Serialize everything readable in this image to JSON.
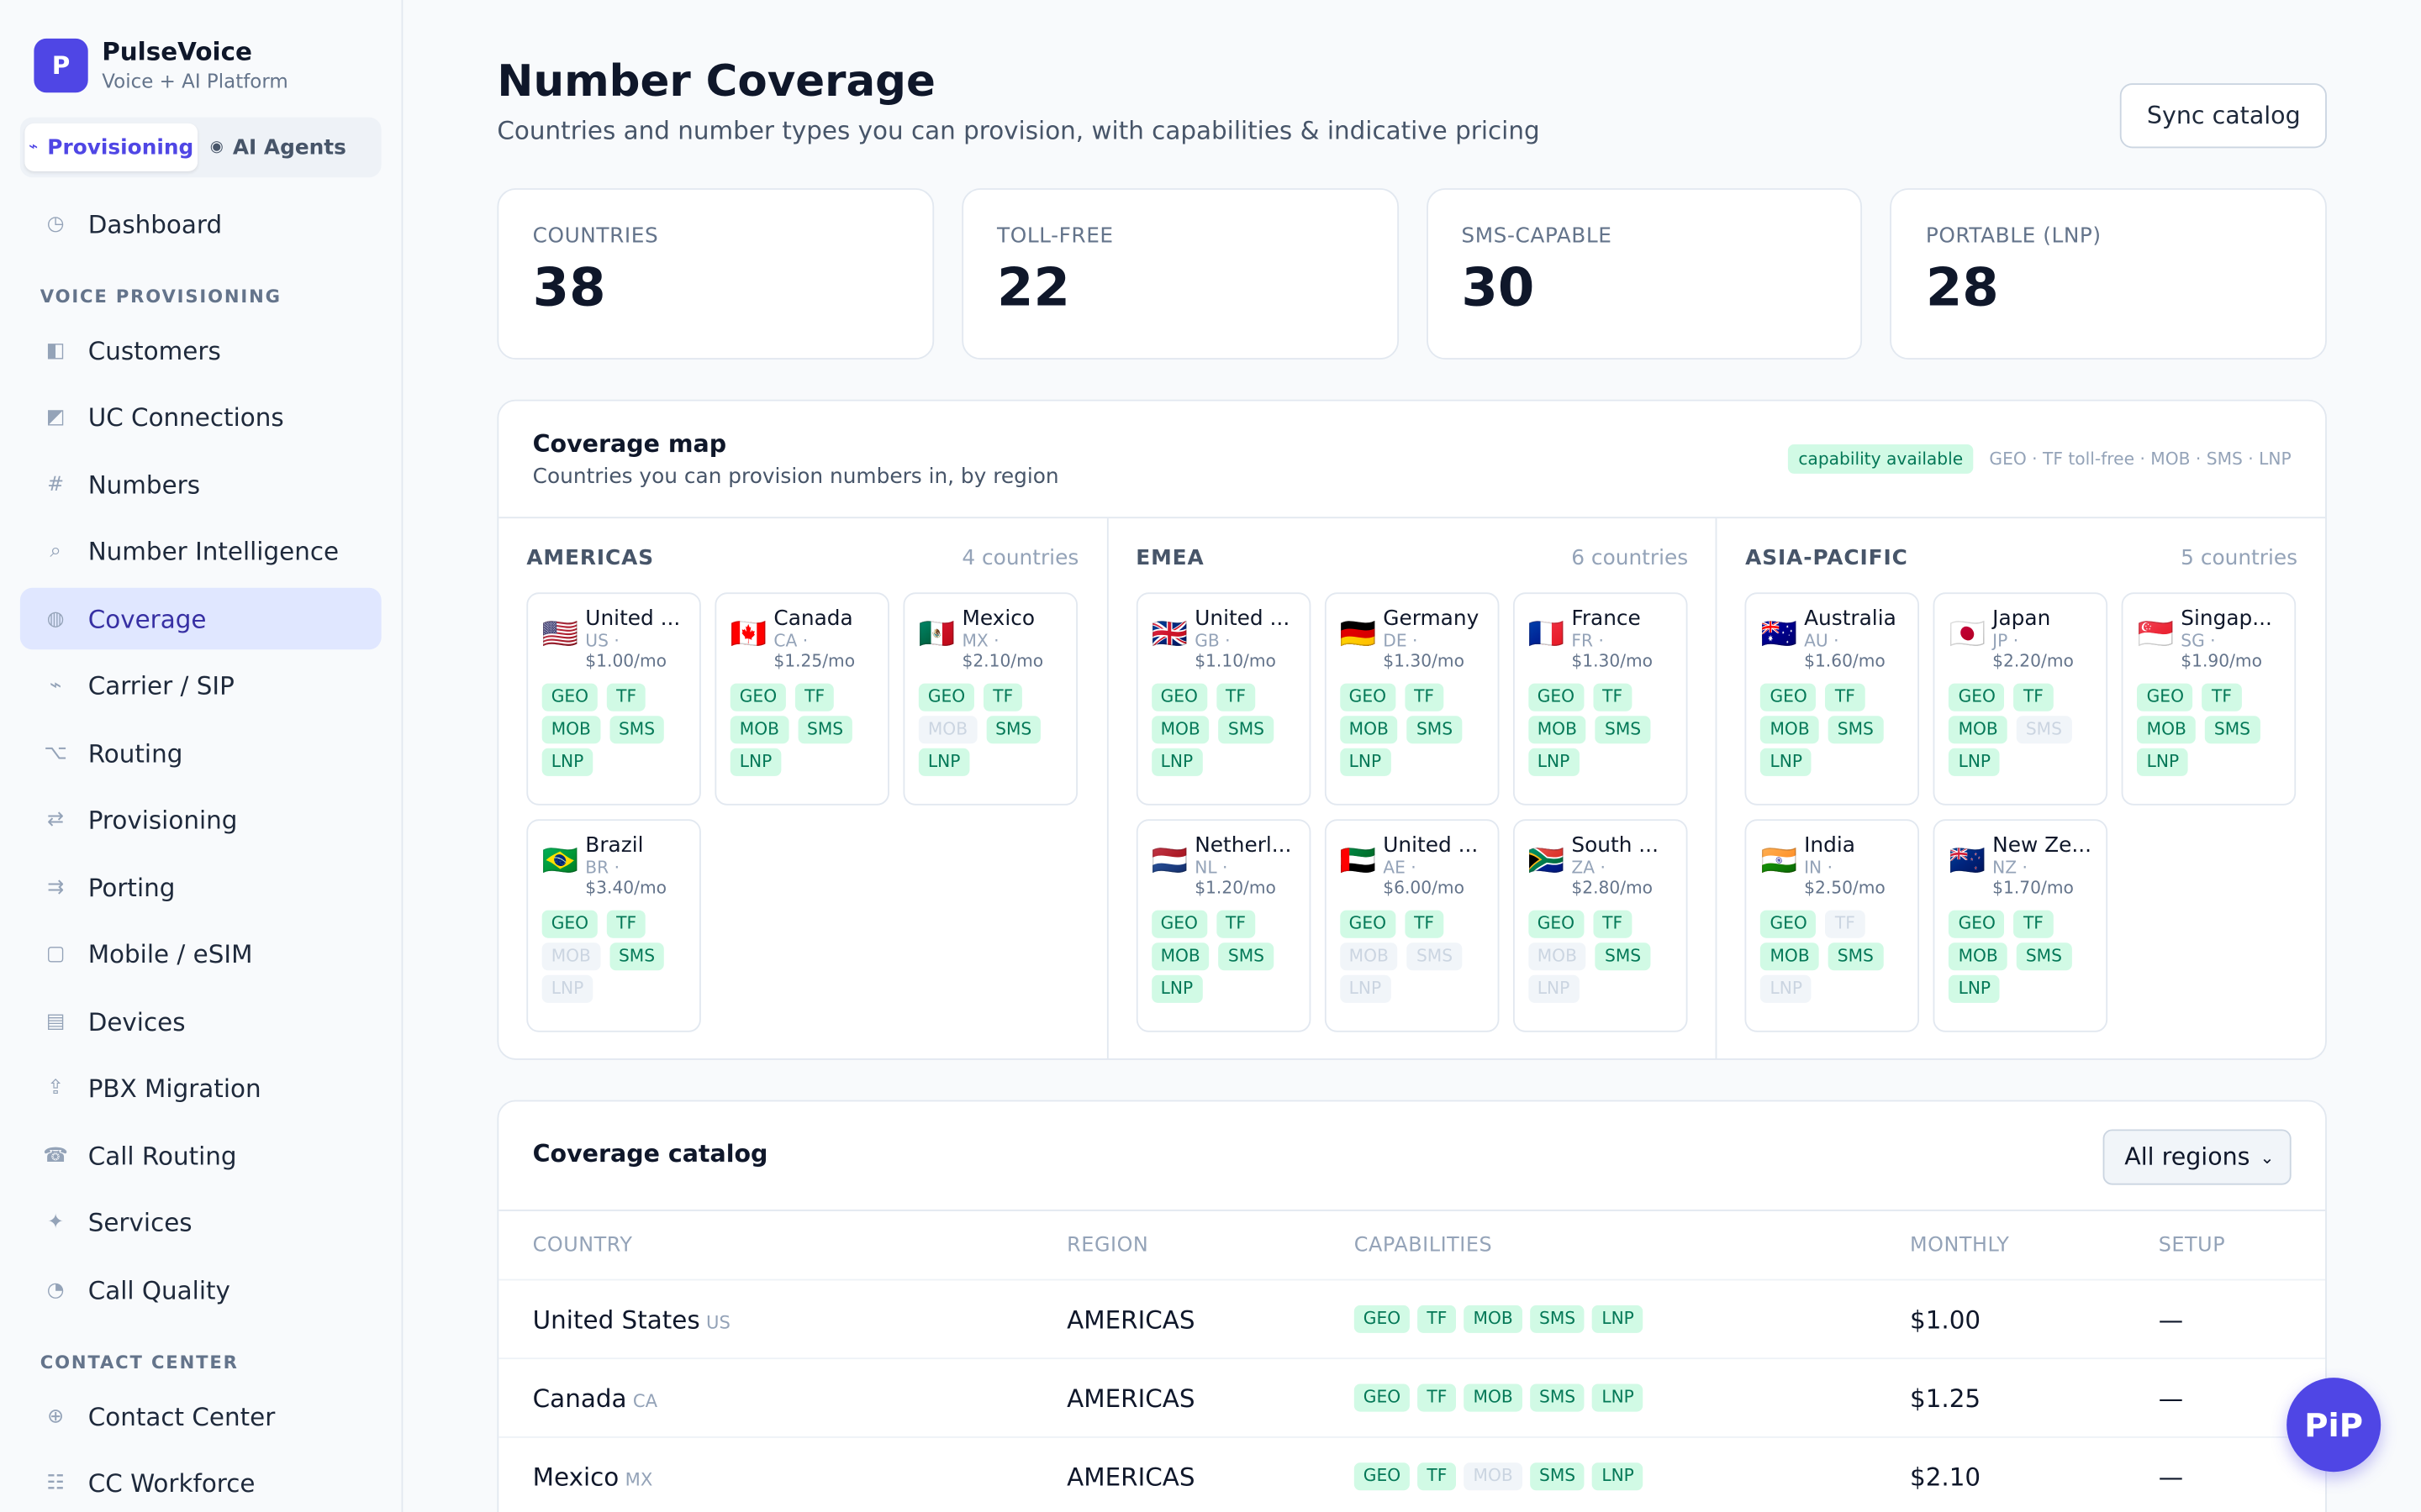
{
  "brand": {
    "logo_letter": "P",
    "name": "PulseVoice",
    "subtitle": "Voice + AI Platform"
  },
  "mode_switch": [
    {
      "label": "Provisioning",
      "icon": "wave-icon",
      "active": true
    },
    {
      "label": "AI Agents",
      "icon": "dot-icon",
      "active": false
    }
  ],
  "nav": {
    "dashboard": "Dashboard",
    "section_voice": "VOICE PROVISIONING",
    "voice_items": [
      {
        "label": "Customers",
        "icon": "◧"
      },
      {
        "label": "UC Connections",
        "icon": "◩"
      },
      {
        "label": "Numbers",
        "icon": "#"
      },
      {
        "label": "Number Intelligence",
        "icon": "⌕"
      },
      {
        "label": "Coverage",
        "icon": "◍",
        "active": true
      },
      {
        "label": "Carrier / SIP",
        "icon": "⌁"
      },
      {
        "label": "Routing",
        "icon": "⌥"
      },
      {
        "label": "Provisioning",
        "icon": "⇄"
      },
      {
        "label": "Porting",
        "icon": "⇉"
      },
      {
        "label": "Mobile / eSIM",
        "icon": "▢"
      },
      {
        "label": "Devices",
        "icon": "▤"
      },
      {
        "label": "PBX Migration",
        "icon": "⇪"
      },
      {
        "label": "Call Routing",
        "icon": "☎"
      },
      {
        "label": "Services",
        "icon": "✦"
      },
      {
        "label": "Call Quality",
        "icon": "◔"
      }
    ],
    "section_contact": "CONTACT CENTER",
    "contact_items": [
      {
        "label": "Contact Center",
        "icon": "⊕"
      },
      {
        "label": "CC Workforce",
        "icon": "☷"
      }
    ]
  },
  "page": {
    "title": "Number Coverage",
    "subtitle": "Countries and number types you can provision, with capabilities & indicative pricing",
    "sync_label": "Sync catalog"
  },
  "stats": [
    {
      "label": "COUNTRIES",
      "value": "38"
    },
    {
      "label": "TOLL-FREE",
      "value": "22"
    },
    {
      "label": "SMS-CAPABLE",
      "value": "30"
    },
    {
      "label": "PORTABLE (LNP)",
      "value": "28"
    }
  ],
  "map": {
    "title": "Coverage map",
    "subtitle": "Countries you can provision numbers in, by region",
    "legend_badge": "capability available",
    "legend_text": "GEO · TF toll-free · MOB · SMS · LNP",
    "regions": [
      {
        "name": "AMERICAS",
        "count": "4 countries",
        "countries": [
          {
            "flag": "🇺🇸",
            "name": "United ...",
            "code": "US ·",
            "price": "$1.00/mo",
            "caps": {
              "GEO": true,
              "TF": true,
              "MOB": true,
              "SMS": true,
              "LNP": true
            }
          },
          {
            "flag": "🇨🇦",
            "name": "Canada",
            "code": "CA ·",
            "price": "$1.25/mo",
            "caps": {
              "GEO": true,
              "TF": true,
              "MOB": true,
              "SMS": true,
              "LNP": true
            }
          },
          {
            "flag": "🇲🇽",
            "name": "Mexico",
            "code": "MX ·",
            "price": "$2.10/mo",
            "caps": {
              "GEO": true,
              "TF": true,
              "MOB": false,
              "SMS": true,
              "LNP": true
            }
          },
          {
            "flag": "🇧🇷",
            "name": "Brazil",
            "code": "BR ·",
            "price": "$3.40/mo",
            "caps": {
              "GEO": true,
              "TF": true,
              "MOB": false,
              "SMS": true,
              "LNP": false
            }
          }
        ]
      },
      {
        "name": "EMEA",
        "count": "6 countries",
        "countries": [
          {
            "flag": "🇬🇧",
            "name": "United ...",
            "code": "GB ·",
            "price": "$1.10/mo",
            "caps": {
              "GEO": true,
              "TF": true,
              "MOB": true,
              "SMS": true,
              "LNP": true
            }
          },
          {
            "flag": "🇩🇪",
            "name": "Germany",
            "code": "DE ·",
            "price": "$1.30/mo",
            "caps": {
              "GEO": true,
              "TF": true,
              "MOB": true,
              "SMS": true,
              "LNP": true
            }
          },
          {
            "flag": "🇫🇷",
            "name": "France",
            "code": "FR ·",
            "price": "$1.30/mo",
            "caps": {
              "GEO": true,
              "TF": true,
              "MOB": true,
              "SMS": true,
              "LNP": true
            }
          },
          {
            "flag": "🇳🇱",
            "name": "Netherl...",
            "code": "NL ·",
            "price": "$1.20/mo",
            "caps": {
              "GEO": true,
              "TF": true,
              "MOB": true,
              "SMS": true,
              "LNP": true
            }
          },
          {
            "flag": "🇦🇪",
            "name": "United ...",
            "code": "AE ·",
            "price": "$6.00/mo",
            "caps": {
              "GEO": true,
              "TF": true,
              "MOB": false,
              "SMS": false,
              "LNP": false
            }
          },
          {
            "flag": "🇿🇦",
            "name": "South ...",
            "code": "ZA ·",
            "price": "$2.80/mo",
            "caps": {
              "GEO": true,
              "TF": true,
              "MOB": false,
              "SMS": true,
              "LNP": false
            }
          }
        ]
      },
      {
        "name": "ASIA-PACIFIC",
        "count": "5 countries",
        "countries": [
          {
            "flag": "🇦🇺",
            "name": "Australia",
            "code": "AU ·",
            "price": "$1.60/mo",
            "caps": {
              "GEO": true,
              "TF": true,
              "MOB": true,
              "SMS": true,
              "LNP": true
            }
          },
          {
            "flag": "🇯🇵",
            "name": "Japan",
            "code": "JP ·",
            "price": "$2.20/mo",
            "caps": {
              "GEO": true,
              "TF": true,
              "MOB": true,
              "SMS": false,
              "LNP": true
            }
          },
          {
            "flag": "🇸🇬",
            "name": "Singap...",
            "code": "SG ·",
            "price": "$1.90/mo",
            "caps": {
              "GEO": true,
              "TF": true,
              "MOB": true,
              "SMS": true,
              "LNP": true
            }
          },
          {
            "flag": "🇮🇳",
            "name": "India",
            "code": "IN ·",
            "price": "$2.50/mo",
            "caps": {
              "GEO": true,
              "TF": false,
              "MOB": true,
              "SMS": true,
              "LNP": false
            }
          },
          {
            "flag": "🇳🇿",
            "name": "New Ze...",
            "code": "NZ ·",
            "price": "$1.70/mo",
            "caps": {
              "GEO": true,
              "TF": true,
              "MOB": true,
              "SMS": true,
              "LNP": true
            }
          }
        ]
      }
    ]
  },
  "catalog": {
    "title": "Coverage catalog",
    "region_filter": "All regions",
    "columns": [
      "COUNTRY",
      "REGION",
      "CAPABILITIES",
      "MONTHLY",
      "SETUP"
    ],
    "rows": [
      {
        "country": "United States",
        "code": "US",
        "region": "AMERICAS",
        "caps": {
          "GEO": true,
          "TF": true,
          "MOB": true,
          "SMS": true,
          "LNP": true
        },
        "monthly": "$1.00",
        "setup": "—"
      },
      {
        "country": "Canada",
        "code": "CA",
        "region": "AMERICAS",
        "caps": {
          "GEO": true,
          "TF": true,
          "MOB": true,
          "SMS": true,
          "LNP": true
        },
        "monthly": "$1.25",
        "setup": "—"
      },
      {
        "country": "Mexico",
        "code": "MX",
        "region": "AMERICAS",
        "caps": {
          "GEO": true,
          "TF": true,
          "MOB": false,
          "SMS": true,
          "LNP": true
        },
        "monthly": "$2.10",
        "setup": "—"
      }
    ]
  },
  "pip": {
    "label": "PiP"
  },
  "colors": {
    "accent": "#4f46e5",
    "cap_on_bg": "#d1fae5",
    "cap_on_fg": "#047857",
    "cap_off_bg": "#f1f5f9"
  }
}
